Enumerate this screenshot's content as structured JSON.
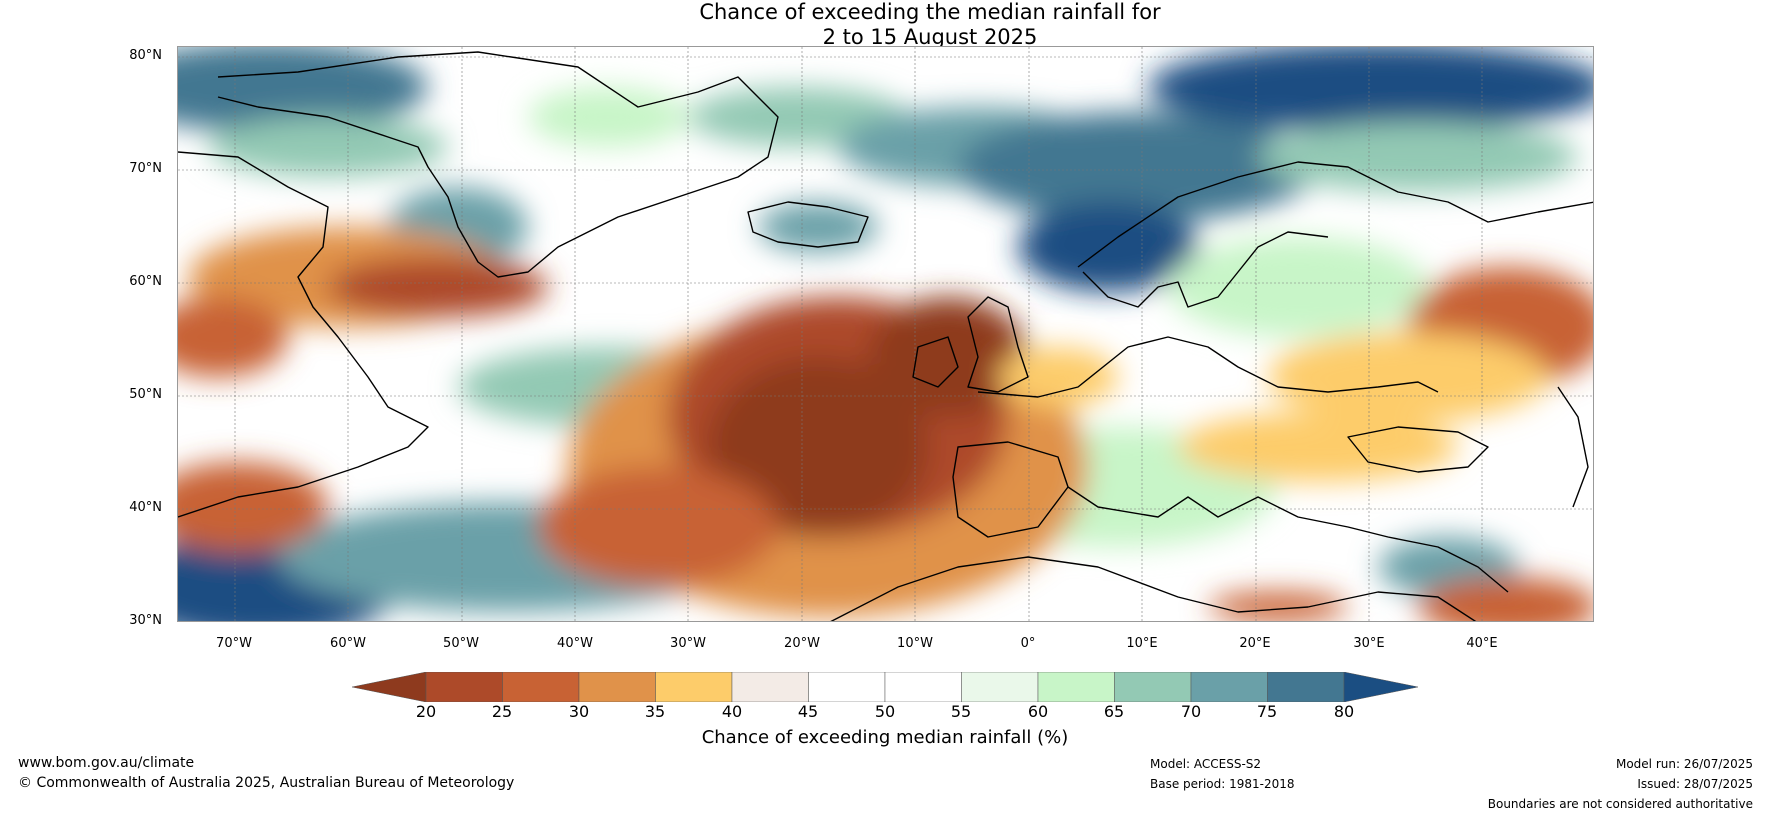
{
  "title": {
    "line1": "Chance of exceeding the median rainfall for",
    "line2": "2 to 15 August 2025"
  },
  "map": {
    "lat_labels": [
      "80°N",
      "70°N",
      "60°N",
      "50°N",
      "40°N",
      "30°N"
    ],
    "lon_labels": [
      "70°W",
      "60°W",
      "50°W",
      "40°W",
      "30°W",
      "20°W",
      "10°W",
      "0°",
      "10°E",
      "20°E",
      "30°E",
      "40°E"
    ]
  },
  "colorbar": {
    "ticks": [
      "20",
      "25",
      "30",
      "35",
      "40",
      "45",
      "50",
      "55",
      "60",
      "65",
      "70",
      "75",
      "80"
    ],
    "colors": [
      "#8e3a1e",
      "#ad4a29",
      "#c86234",
      "#e0924a",
      "#fdcc6a",
      "#f3ebe6",
      "#ffffff",
      "#ffffff",
      "#eaf8ea",
      "#c8f5c8",
      "#93c9b4",
      "#6aa0a8",
      "#437791",
      "#1b4e82"
    ],
    "label": "Chance of exceeding median rainfall (%)"
  },
  "footer": {
    "website": "www.bom.gov.au/climate",
    "copyright": "© Commonwealth of Australia 2025, Australian Bureau of Meteorology",
    "model": "Model: ACCESS-S2",
    "base_period": "Base period: 1981-2018",
    "model_run": "Model run: 26/07/2025",
    "issued": "Issued: 28/07/2025",
    "disclaimer": "Boundaries are not considered authoritative"
  }
}
